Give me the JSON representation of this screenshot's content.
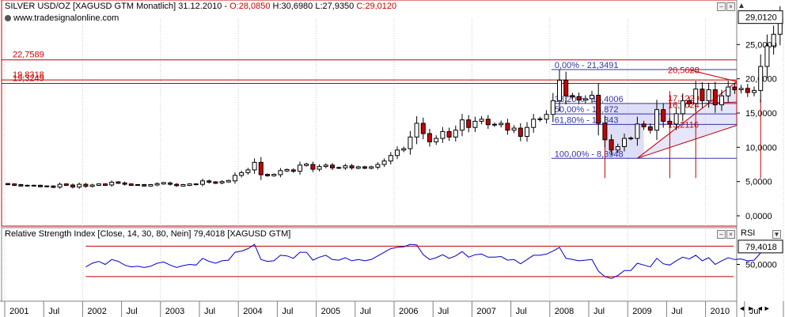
{
  "header": {
    "symbol": "SILVER USD/OZ [XAGUSD GTM",
    "period": "Monatlich] 31.12.2010 -",
    "open": "O:28,0850",
    "high": "H:30,6980",
    "low": "L:27,9350",
    "close": "C:29,0120",
    "website": "www.tradesignalonline.com"
  },
  "rsi_header": {
    "title": "Relative Strength Index [Close, 14, 30, 80, Nein] 79,4018 [XAGUSD GTM]"
  },
  "colors": {
    "up": "#ffffff",
    "down": "#cc0000",
    "frame": "#c00000",
    "fib": "#3333aa",
    "fibFill": "#c8c8f0",
    "rsi": "#0000cc",
    "grid": "#c8c8c8"
  },
  "chart_data": [
    {
      "type": "candlestick",
      "period": "monthly",
      "x_start": "2001-01",
      "yticks": [
        "0,0000",
        "5,0000",
        "10,0000",
        "15,0000",
        "20,0000",
        "25,0000"
      ],
      "last_value": "29,0120",
      "ylim": [
        -1.5,
        31.5
      ],
      "xlabels": [
        {
          "label": "2001",
          "t": 0
        },
        {
          "label": "Jul",
          "t": 6
        },
        {
          "label": "2002",
          "t": 12
        },
        {
          "label": "Jul",
          "t": 18
        },
        {
          "label": "2003",
          "t": 24
        },
        {
          "label": "Jul",
          "t": 30
        },
        {
          "label": "2004",
          "t": 36
        },
        {
          "label": "Jul",
          "t": 42
        },
        {
          "label": "2005",
          "t": 48
        },
        {
          "label": "Jul",
          "t": 54
        },
        {
          "label": "2006",
          "t": 60
        },
        {
          "label": "Jul",
          "t": 66
        },
        {
          "label": "2007",
          "t": 72
        },
        {
          "label": "Jul",
          "t": 78
        },
        {
          "label": "2008",
          "t": 84
        },
        {
          "label": "Jul",
          "t": 90
        },
        {
          "label": "2009",
          "t": 96
        },
        {
          "label": "Jul",
          "t": 102
        },
        {
          "label": "2010",
          "t": 108
        },
        {
          "label": "Jul",
          "t": 114
        },
        {
          "label": "2011",
          "t": 120
        },
        {
          "label": "Jul",
          "t": 126
        }
      ],
      "close": [
        4.6,
        4.5,
        4.4,
        4.4,
        4.4,
        4.3,
        4.3,
        4.2,
        4.6,
        4.5,
        4.2,
        4.6,
        4.3,
        4.5,
        4.6,
        4.5,
        4.9,
        4.8,
        4.6,
        4.5,
        4.5,
        4.4,
        4.5,
        4.7,
        4.8,
        4.6,
        4.4,
        4.5,
        4.6,
        4.6,
        5.1,
        4.9,
        4.8,
        5.0,
        5.1,
        5.9,
        6.3,
        6.7,
        7.8,
        6.0,
        5.9,
        6.0,
        6.6,
        6.7,
        6.5,
        7.4,
        7.5,
        6.8,
        7.2,
        7.4,
        7.0,
        7.0,
        7.3,
        7.0,
        7.1,
        7.0,
        7.1,
        7.5,
        8.0,
        8.8,
        9.6,
        9.8,
        11.5,
        13.5,
        12.0,
        10.8,
        11.3,
        12.3,
        11.5,
        12.5,
        14.0,
        12.9,
        13.8,
        14.1,
        13.3,
        13.3,
        13.5,
        12.5,
        12.8,
        11.6,
        12.9,
        14.1,
        14.1,
        14.8,
        16.8,
        19.8,
        17.5,
        17.4,
        16.9,
        17.1,
        17.6,
        13.5,
        11.1,
        9.6,
        10.1,
        11.3,
        11.3,
        13.4,
        13.0,
        12.5,
        15.5,
        13.8,
        13.4,
        14.9,
        16.8,
        16.4,
        18.5,
        16.8,
        18.4,
        16.2,
        17.5,
        18.8,
        18.4,
        18.6,
        18.0,
        18.3,
        21.8,
        24.8,
        26.5,
        29.0
      ],
      "open_first": 4.65,
      "annotations": {
        "hlines": [
          {
            "label": "22,7589",
            "y": 22.76
          },
          {
            "label": "19,8318",
            "y": 19.83
          },
          {
            "label": "19,3249",
            "y": 19.32
          }
        ],
        "fibs": [
          {
            "label": "0,00% - 21,3491",
            "y": 21.35
          },
          {
            "label": "38,20% - 16,4006",
            "y": 16.4
          },
          {
            "label": "50,00% - 14,872",
            "y": 14.87
          },
          {
            "label": "61,80% - 13,343",
            "y": 13.34
          },
          {
            "label": "100,00% - 8,3948",
            "y": 8.39
          }
        ],
        "fib_t": [
          84,
          119
        ],
        "right_labels": [
          {
            "label": "20,5628",
            "y": 21.2
          },
          {
            "label": "17,1229",
            "y": 17.1
          },
          {
            "label": "16,1024",
            "y": 16.1
          },
          {
            "label": "13,2116",
            "y": 13.2
          }
        ],
        "triangle": {
          "a": [
            97,
            8.4
          ],
          "b": [
            123,
            19.6
          ],
          "c": [
            123,
            13.2
          ]
        },
        "lines": [
          {
            "t1": 105,
            "y1": 21.3,
            "t2": 123,
            "y2": 19.6
          },
          {
            "t1": 104,
            "y1": 16.3,
            "t2": 123,
            "y2": 16.6
          }
        ],
        "vlines": [
          {
            "t": 92,
            "y1": 5.5,
            "y2": 13.4
          },
          {
            "t": 102,
            "y1": 5.5,
            "y2": 18.2
          },
          {
            "t": 106,
            "y1": 5.5,
            "y2": 16.0
          },
          {
            "t": 116,
            "y1": 5.5,
            "y2": 17.0
          }
        ]
      }
    },
    {
      "type": "line",
      "title": "Relative Strength Index",
      "yticks": [
        "50,0000"
      ],
      "last_value": "79,4018",
      "ylim": [
        0,
        100
      ],
      "bands": [
        30,
        80
      ],
      "series": [
        {
          "values": [
            48,
            50,
            45,
            44,
            45,
            44,
            43,
            42,
            55,
            51,
            44,
            55,
            46,
            52,
            55,
            50,
            58,
            55,
            49,
            46,
            47,
            45,
            47,
            52,
            54,
            49,
            45,
            48,
            50,
            49,
            60,
            55,
            52,
            56,
            57,
            70,
            72,
            76,
            83,
            58,
            55,
            56,
            65,
            64,
            60,
            70,
            70,
            57,
            62,
            65,
            58,
            57,
            61,
            56,
            58,
            56,
            58,
            64,
            70,
            76,
            78,
            79,
            83,
            82,
            66,
            58,
            61,
            66,
            60,
            64,
            71,
            62,
            66,
            67,
            62,
            62,
            63,
            57,
            58,
            51,
            58,
            65,
            65,
            67,
            72,
            78,
            60,
            58,
            56,
            57,
            58,
            39,
            30,
            27,
            32,
            40,
            40,
            52,
            49,
            46,
            60,
            51,
            49,
            56,
            62,
            59,
            65,
            56,
            61,
            50,
            56,
            61,
            58,
            59,
            56,
            57,
            69,
            75,
            77,
            79.4
          ]
        }
      ]
    }
  ]
}
